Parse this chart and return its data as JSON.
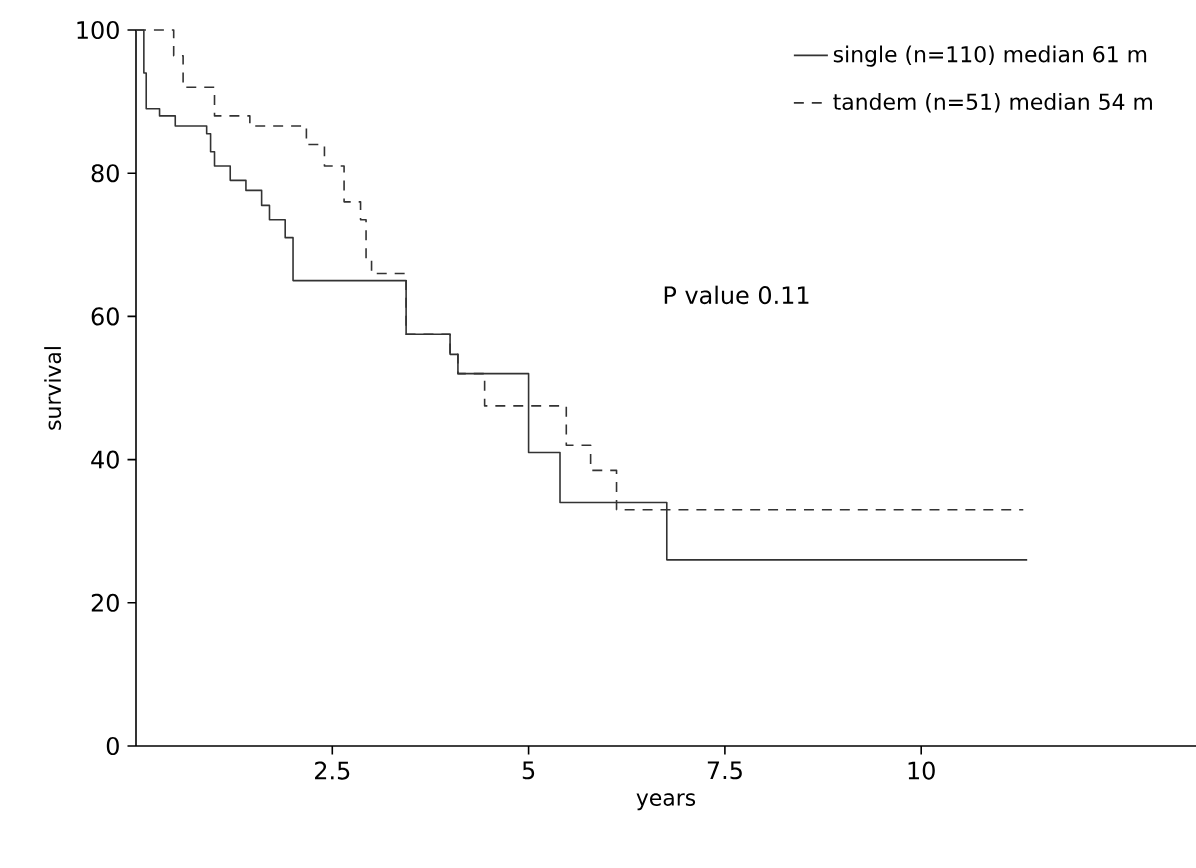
{
  "chart_data": {
    "type": "step",
    "xlabel": "years",
    "ylabel": "survival",
    "annotations": [
      "P value 0.11"
    ],
    "xlim": [
      0,
      13.5
    ],
    "ylim": [
      0,
      100
    ],
    "xticks": [
      2.5,
      5,
      7.5,
      10
    ],
    "yticks": [
      0,
      20,
      40,
      60,
      80,
      100
    ],
    "legend": "top right",
    "marker": "none",
    "series": [
      {
        "name": "single (n=110) median 61 m",
        "color": "#333333",
        "line_style": "solid",
        "x": [
          0,
          0.1,
          0.13,
          0.3,
          0.5,
          0.9,
          0.95,
          1.0,
          1.2,
          1.4,
          1.6,
          1.7,
          1.9,
          2.0,
          3.44,
          4.0,
          4.1,
          5.0,
          5.4,
          6.76,
          11.35
        ],
        "values": [
          100,
          94,
          89,
          88,
          86.6,
          85.5,
          83,
          81,
          79,
          77.6,
          75.5,
          73.5,
          71,
          65,
          57.5,
          54.7,
          52,
          41,
          34,
          26,
          26
        ]
      },
      {
        "name": "tandem (n=51) median 54 m",
        "color": "#333333",
        "line_style": "dashed",
        "x": [
          0,
          0.48,
          0.6,
          1.0,
          1.45,
          2.17,
          2.4,
          2.65,
          2.86,
          2.93,
          3.0,
          3.44,
          4.0,
          4.1,
          4.44,
          5.48,
          5.79,
          6.12,
          11.3
        ],
        "values": [
          100,
          96.4,
          92,
          88,
          86.6,
          84,
          81,
          76,
          73.5,
          68,
          66,
          57.5,
          54.7,
          52,
          47.5,
          42,
          38.5,
          33,
          33
        ]
      }
    ]
  }
}
